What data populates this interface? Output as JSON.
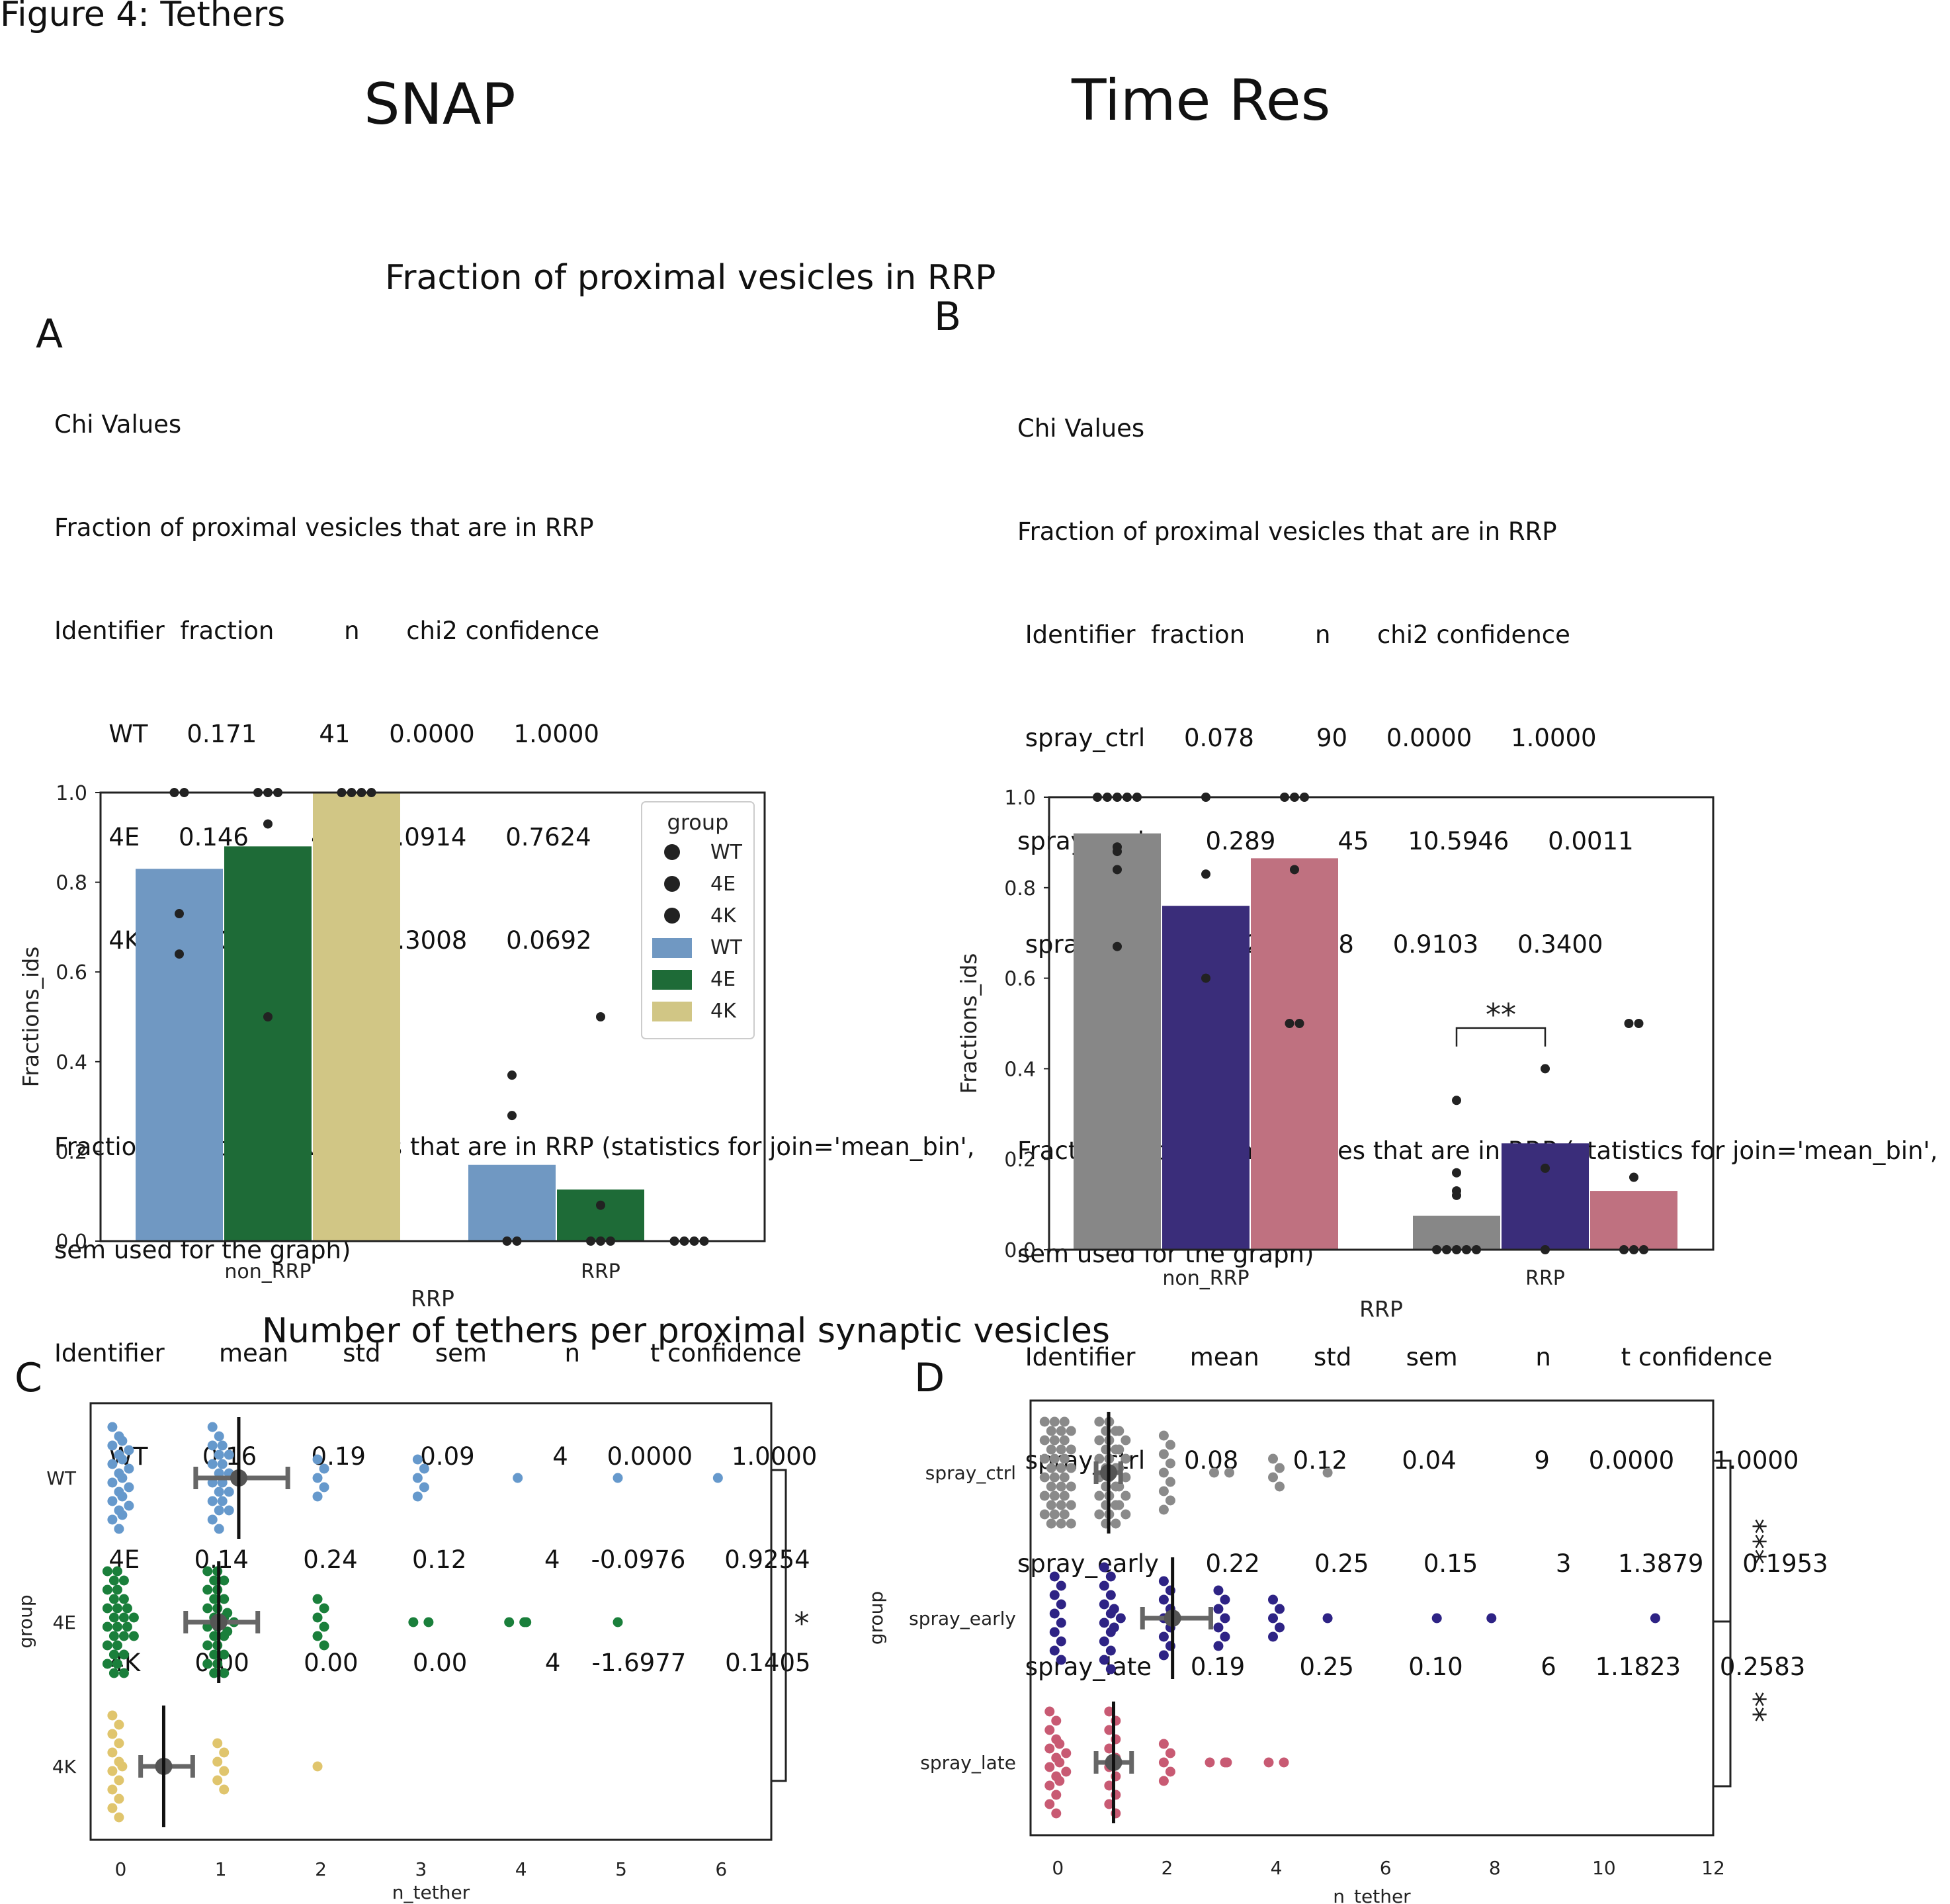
{
  "figure_title": "Figure 4: Tethers",
  "col_left": "SNAP",
  "col_right": "Time Res",
  "title_fraction": "Fraction of proximal vesicles in RRP",
  "title_tethers": "Number of tethers per proximal synaptic vesicles",
  "letters": {
    "a": "A",
    "b": "B",
    "c": "C",
    "d": "D"
  },
  "stats_a": [
    "Chi Values",
    "Fraction of proximal vesicles that are in RRP",
    "Identifier  fraction         n      chi2 confidence",
    "       WT     0.171        41     0.0000     1.0000",
    "       4E     0.146        41     0.0914     0.7624",
    "       4K     0.000        17     3.3008     0.0692",
    "",
    "Fraction of proximal vesicles that are in RRP (statistics for join='mean_bin',",
    "sem used for the graph)",
    "Identifier       mean       std       sem          n         t confidence",
    "       WT       0.16       0.19       0.09          4     0.0000     1.0000",
    "       4E       0.14       0.24       0.12          4    -0.0976     0.9254",
    "       4K       0.00       0.00       0.00          4    -1.6977     0.1405"
  ],
  "stats_b": [
    "Chi Values",
    "Fraction of proximal vesicles that are in RRP",
    " Identifier  fraction         n      chi2 confidence",
    " spray_ctrl     0.078        90     0.0000     1.0000",
    "spray_early      0.289        45     10.5946     0.0011",
    " spray_late     0.132        38     0.9103     0.3400",
    "",
    "Fraction of proximal vesicles that are in RRP (statistics for join='mean_bin',",
    "sem used for the graph)",
    " Identifier       mean       std       sem          n         t confidence",
    " spray_ctrl     0.08       0.12       0.04          9     0.0000     1.0000",
    "spray_early      0.22       0.25       0.15          3      1.3879     0.1953",
    " spray_late     0.19       0.25       0.10          6     1.1823     0.2583"
  ],
  "chart_data": [
    {
      "id": "A",
      "type": "bar",
      "categories": [
        "non_RRP",
        "RRP"
      ],
      "xlabel": "RRP",
      "ylabel": "Fractions_ids",
      "ylim": [
        0,
        1.0
      ],
      "yticks": [
        "0.0",
        "0.2",
        "0.4",
        "0.6",
        "0.8",
        "1.0"
      ],
      "legend_title": "group",
      "legend_position": "top-right",
      "series": [
        {
          "name": "WT",
          "color": "#7098c2",
          "values": [
            0.83,
            0.17
          ],
          "points": [
            [
              1.0,
              1.0,
              0.73,
              0.64
            ],
            [
              0.37,
              0.28,
              0.0,
              0.0
            ]
          ]
        },
        {
          "name": "4E",
          "color": "#1e6b37",
          "values": [
            0.88,
            0.115
          ],
          "points": [
            [
              1.0,
              1.0,
              1.0,
              0.93,
              0.5
            ],
            [
              0.5,
              0.08,
              0.0,
              0.0,
              0.0
            ]
          ]
        },
        {
          "name": "4K",
          "color": "#d1c685",
          "values": [
            1.0,
            0.0
          ],
          "points": [
            [
              1.0,
              1.0,
              1.0,
              1.0
            ],
            [
              0.0,
              0.0,
              0.0,
              0.0
            ]
          ]
        }
      ]
    },
    {
      "id": "B",
      "type": "bar",
      "categories": [
        "non_RRP",
        "RRP"
      ],
      "xlabel": "RRP",
      "ylabel": "Fractions_ids",
      "ylim": [
        0,
        1.0
      ],
      "yticks": [
        "0.0",
        "0.2",
        "0.4",
        "0.6",
        "0.8",
        "1.0"
      ],
      "annotation": "**",
      "series": [
        {
          "name": "spray_ctrl",
          "color": "#878787",
          "values": [
            0.92,
            0.075
          ],
          "points": [
            [
              1.0,
              1.0,
              1.0,
              1.0,
              1.0,
              0.89,
              0.88,
              0.84,
              0.67
            ],
            [
              0.33,
              0.17,
              0.13,
              0.12,
              0.0,
              0.0,
              0.0,
              0.0,
              0.0
            ]
          ]
        },
        {
          "name": "spray_early",
          "color": "#3a2d7a",
          "values": [
            0.76,
            0.235
          ],
          "points": [
            [
              1.0,
              0.83,
              0.6
            ],
            [
              0.4,
              0.18,
              0.0
            ]
          ]
        },
        {
          "name": "spray_late",
          "color": "#bf7180",
          "values": [
            0.865,
            0.13
          ],
          "points": [
            [
              1.0,
              1.0,
              1.0,
              0.84,
              0.5,
              0.5
            ],
            [
              0.5,
              0.5,
              0.16,
              0.0,
              0.0,
              0.0
            ]
          ]
        }
      ]
    },
    {
      "id": "C",
      "type": "scatter",
      "xlabel": "n_tether",
      "ylabel": "group",
      "xlim": [
        -0.3,
        6.5
      ],
      "xticks": [
        "0",
        "1",
        "2",
        "3",
        "4",
        "5",
        "6"
      ],
      "categories": [
        "WT",
        "4E",
        "4K"
      ],
      "annotation": "*",
      "series": [
        {
          "name": "WT",
          "color": "#6699cc",
          "mean": 1.18,
          "sem_low": 0.75,
          "sem_high": 1.67,
          "counts": [
            [
              0,
              21
            ],
            [
              1,
              20
            ],
            [
              2,
              5
            ],
            [
              3,
              5
            ],
            [
              4,
              1
            ],
            [
              5,
              1
            ],
            [
              6,
              1
            ]
          ]
        },
        {
          "name": "4E",
          "color": "#1a7f3b",
          "mean": 0.98,
          "sem_low": 0.65,
          "sem_high": 1.37,
          "counts": [
            [
              0,
              28
            ],
            [
              1,
              27
            ],
            [
              2,
              6
            ],
            [
              3,
              2
            ],
            [
              4,
              3
            ],
            [
              5,
              1
            ]
          ]
        },
        {
          "name": "4K",
          "color": "#e0c56d",
          "mean": 0.43,
          "sem_low": 0.2,
          "sem_high": 0.72,
          "counts": [
            [
              0,
              13
            ],
            [
              1,
              6
            ],
            [
              2,
              1
            ]
          ]
        }
      ]
    },
    {
      "id": "D",
      "type": "scatter",
      "xlabel": "n_tether",
      "ylabel": "group",
      "xlim": [
        -0.5,
        12.0
      ],
      "xticks": [
        "0",
        "2",
        "4",
        "6",
        "8",
        "10",
        "12"
      ],
      "categories": [
        "spray_ctrl",
        "spray_early",
        "spray_late"
      ],
      "annotations": [
        "***",
        "**"
      ],
      "series": [
        {
          "name": "spray_ctrl",
          "color": "#8a8a8a",
          "mean": 0.93,
          "sem_low": 0.7,
          "sem_high": 1.15,
          "counts": [
            [
              0,
              36
            ],
            [
              1,
              34
            ],
            [
              2,
              9
            ],
            [
              3,
              2
            ],
            [
              4,
              4
            ],
            [
              5,
              1
            ]
          ]
        },
        {
          "name": "spray_early",
          "color": "#2e2385",
          "mean": 2.1,
          "sem_low": 1.55,
          "sem_high": 2.8,
          "counts": [
            [
              0,
              10
            ],
            [
              1,
              15
            ],
            [
              2,
              9
            ],
            [
              3,
              7
            ],
            [
              4,
              5
            ],
            [
              5,
              1
            ],
            [
              7,
              1
            ],
            [
              8,
              1
            ],
            [
              11,
              1
            ]
          ]
        },
        {
          "name": "spray_late",
          "color": "#c85a73",
          "mean": 1.02,
          "sem_low": 0.7,
          "sem_high": 1.35,
          "counts": [
            [
              0,
              17
            ],
            [
              1,
              12
            ],
            [
              2,
              5
            ],
            [
              3,
              3
            ],
            [
              4,
              2
            ]
          ]
        }
      ]
    }
  ]
}
